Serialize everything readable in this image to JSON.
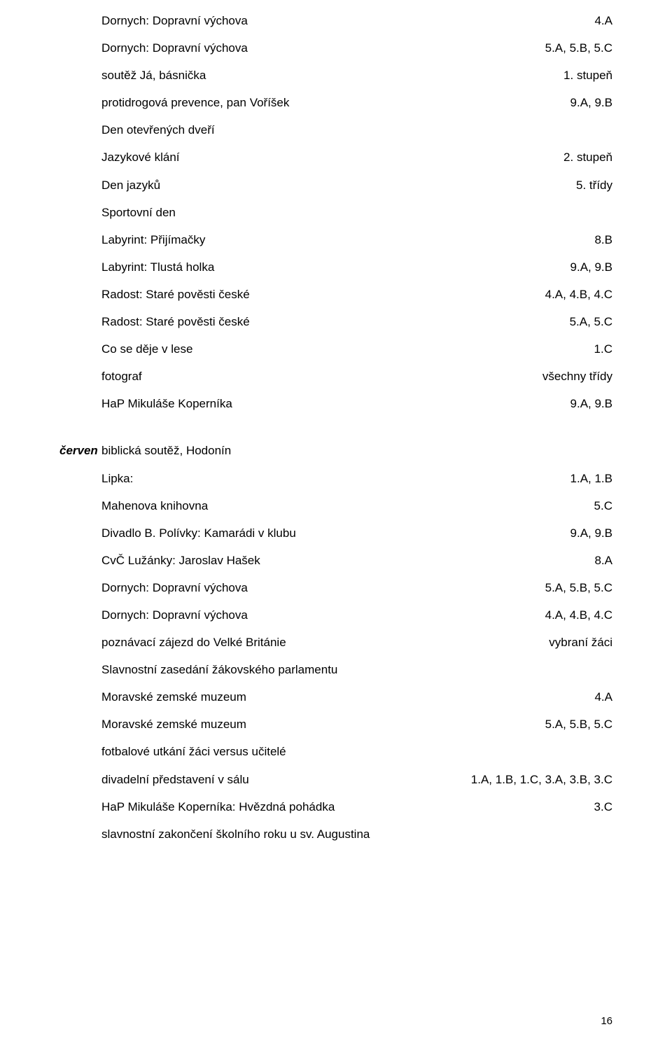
{
  "block1": {
    "rows": [
      {
        "l": "Dornych: Dopravní výchova",
        "r": "4.A"
      },
      {
        "l": "Dornych: Dopravní výchova",
        "r": "5.A, 5.B, 5.C"
      },
      {
        "l": "soutěž Já, básnička",
        "r": "1. stupeň"
      },
      {
        "l": "protidrogová prevence, pan Voříšek",
        "r": "9.A, 9.B"
      },
      {
        "l": "Den otevřených dveří",
        "r": ""
      },
      {
        "l": "Jazykové klání",
        "r": "2. stupeň"
      },
      {
        "l": "Den jazyků",
        "r": "5. třídy"
      },
      {
        "l": "Sportovní den",
        "r": ""
      },
      {
        "l": "Labyrint: Přijímačky",
        "r": "8.B"
      },
      {
        "l": "Labyrint: Tlustá holka",
        "r": "9.A, 9.B"
      },
      {
        "l": "Radost: Staré pověsti české",
        "r": "4.A, 4.B, 4.C"
      },
      {
        "l": "Radost: Staré pověsti české",
        "r": "5.A, 5.C"
      },
      {
        "l": "Co se děje v lese",
        "r": "1.C"
      },
      {
        "l": "fotograf",
        "r": "všechny třídy"
      },
      {
        "l": "HaP Mikuláše Koperníka",
        "r": "9.A, 9.B"
      }
    ]
  },
  "month": "červen",
  "block2": {
    "first": {
      "l": "biblická soutěž, Hodonín",
      "r": ""
    },
    "rows": [
      {
        "l": "Lipka:",
        "r": "1.A, 1.B"
      },
      {
        "l": "Mahenova knihovna",
        "r": "5.C"
      },
      {
        "l": "Divadlo B. Polívky: Kamarádi v klubu",
        "r": "9.A, 9.B"
      },
      {
        "l": "CvČ Lužánky: Jaroslav Hašek",
        "r": "8.A"
      },
      {
        "l": "Dornych: Dopravní výchova",
        "r": "5.A, 5.B, 5.C"
      },
      {
        "l": "Dornych: Dopravní výchova",
        "r": "4.A, 4.B, 4.C"
      },
      {
        "l": "poznávací zájezd do Velké Británie",
        "r": "vybraní žáci"
      },
      {
        "l": "Slavnostní zasedání žákovského parlamentu",
        "r": ""
      },
      {
        "l": "Moravské zemské muzeum",
        "r": "4.A"
      },
      {
        "l": "Moravské zemské muzeum",
        "r": "5.A, 5.B, 5.C"
      },
      {
        "l": "fotbalové utkání žáci versus učitelé",
        "r": ""
      },
      {
        "l": "divadelní představení v sálu",
        "r": "1.A, 1.B, 1.C, 3.A, 3.B, 3.C"
      },
      {
        "l": "HaP Mikuláše Koperníka: Hvězdná pohádka",
        "r": "3.C"
      },
      {
        "l": "slavnostní zakončení školního roku u sv. Augustina",
        "r": ""
      }
    ]
  },
  "pagenum": "16"
}
